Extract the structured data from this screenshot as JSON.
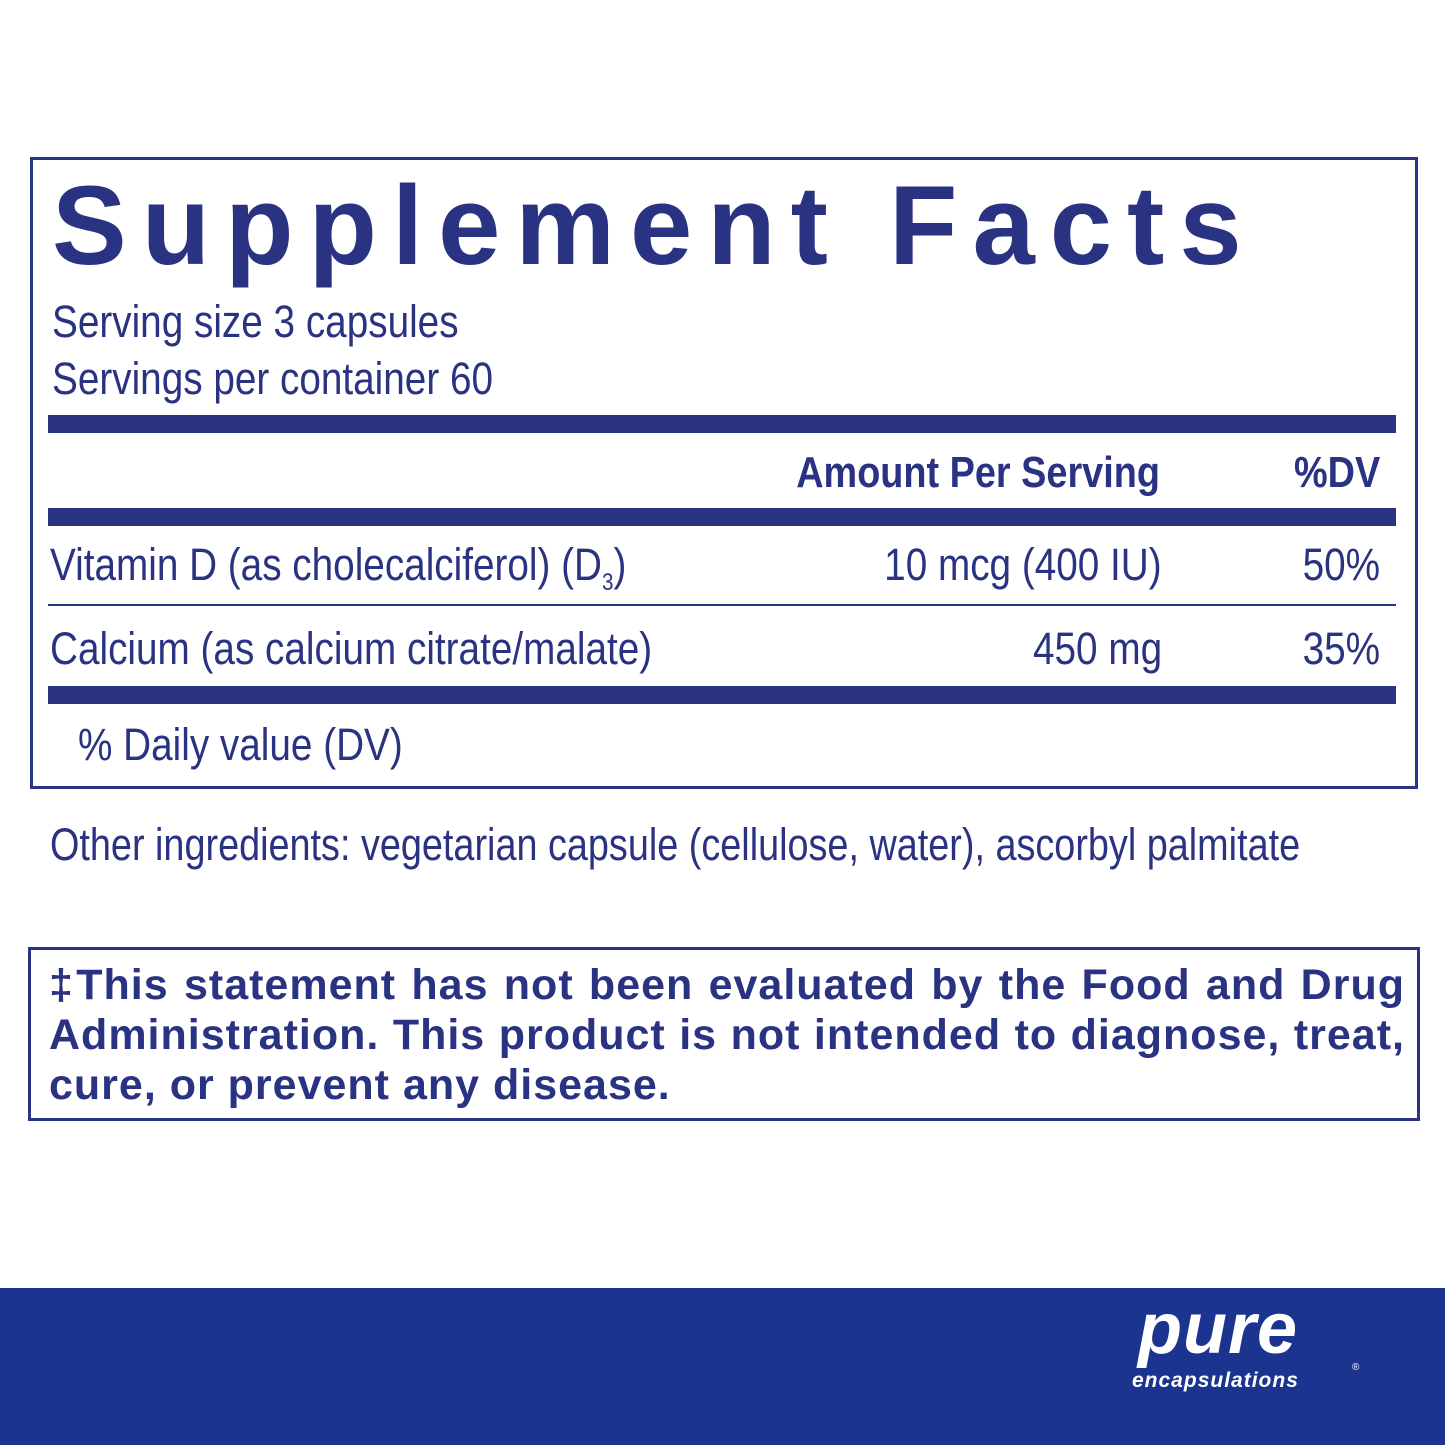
{
  "title": "Supplement Facts",
  "serving_size": "Serving size  3 capsules",
  "servings_per_container": "Servings per container  60",
  "header": {
    "amount": "Amount Per Serving",
    "dv": "%DV"
  },
  "rows": [
    {
      "name": "Vitamin D (as cholecalciferol) (D",
      "sub": "3",
      "name_end": ")",
      "amount": "10 mcg (400 IU)",
      "dv": "50%"
    },
    {
      "name": "Calcium (as calcium citrate/malate)",
      "amount": "450 mg",
      "dv": "35%"
    }
  ],
  "footnote": "% Daily value (DV)",
  "other_ingredients": "Other ingredients:  vegetarian capsule (cellulose, water), ascorbyl palmitate",
  "disclaimer": "‡This statement has not been evaluated by the Food and Drug Administration. This product is not intended to diagnose, treat, cure, or prevent any disease.",
  "brand": {
    "line1": "pure",
    "line2": "encapsulations",
    "mark": "®"
  },
  "colors": {
    "text": "#2a3282",
    "banner": "#1b348f"
  }
}
